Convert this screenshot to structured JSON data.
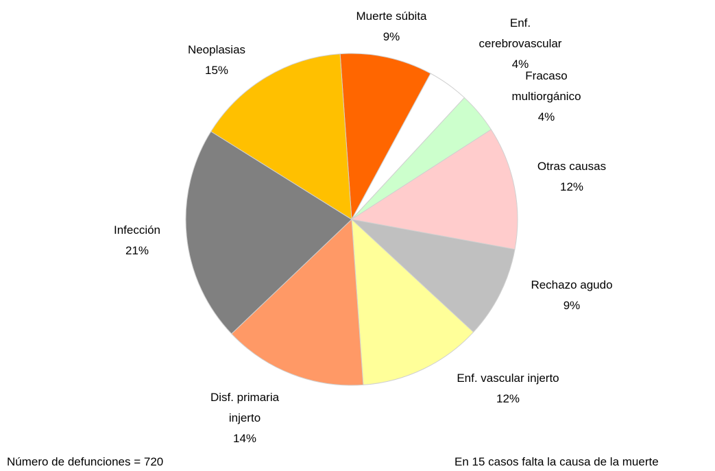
{
  "chart_data": {
    "type": "pie",
    "categories": [
      "Muerte súbita",
      "Enf. cerebrovascular",
      "Fracaso multiorgánico",
      "Otras causas",
      "Rechazo agudo",
      "Enf. vascular injerto",
      "Disf. primaria injerto",
      "Infección",
      "Neoplasias"
    ],
    "values": [
      9,
      4,
      4,
      12,
      9,
      12,
      14,
      21,
      15
    ],
    "value_labels": [
      "9%",
      "4%",
      "4%",
      "12%",
      "9%",
      "12%",
      "14%",
      "21%",
      "15%"
    ],
    "colors": [
      "#ff6600",
      "#ffffff",
      "#ccffcc",
      "#ffcccc",
      "#c0c0c0",
      "#ffff99",
      "#ff9966",
      "#808080",
      "#ffc000"
    ],
    "annotations": [
      "Número de defunciones = 720",
      "En 15 casos falta la causa de la muerte"
    ]
  }
}
